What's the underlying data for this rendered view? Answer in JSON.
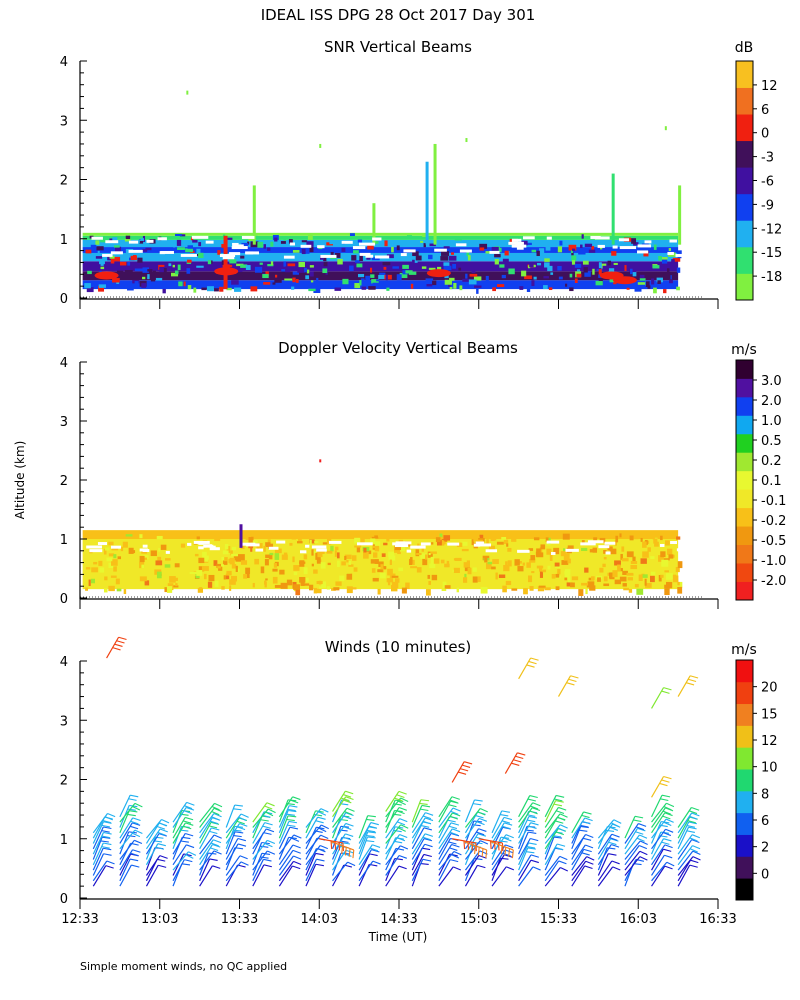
{
  "figure": {
    "title": "IDEAL ISS DPG  28 Oct 2017 Day 301",
    "ylabel": "Altitude (km)",
    "xlabel": "Time (UT)",
    "footnote": "Simple moment winds, no QC applied"
  },
  "colors": {
    "snr_scale": [
      "#80f040",
      "#30e070",
      "#20b0f0",
      "#1040f0",
      "#4010a0",
      "#40105a",
      "#f02010",
      "#f07020",
      "#f8c020"
    ],
    "vel_scale": [
      "#f02020",
      "#f04810",
      "#f07818",
      "#f09810",
      "#f8c018",
      "#f0e828",
      "#e8f830",
      "#a0e830",
      "#20d020",
      "#10a8f0",
      "#1040f0",
      "#5010a0",
      "#300030"
    ],
    "wind_scale": [
      "#000000",
      "#40105a",
      "#1a10c8",
      "#1060f0",
      "#20b0f0",
      "#20d870",
      "#80e830",
      "#f0c018",
      "#f08020",
      "#f04010",
      "#f01010"
    ]
  },
  "chart_data": [
    {
      "type": "heatmap",
      "title": "SNR Vertical Beams",
      "colorbar_unit": "dB",
      "colorbar_ticks": [
        "12",
        "6",
        "0",
        "-3",
        "-6",
        "-9",
        "-12",
        "-15",
        "-18"
      ],
      "y_ticks": [
        "0",
        "1",
        "2",
        "3",
        "4"
      ],
      "x_ticks": [
        "12:33",
        "13:03",
        "13:33",
        "14:03",
        "14:33",
        "15:03",
        "15:33",
        "16:03",
        "16:33"
      ],
      "ylim": [
        0,
        4
      ],
      "x_range_hours": [
        12.55,
        16.55
      ],
      "profiles": [
        {
          "z": [
            0.15,
            1.1
          ],
          "values_db": [
            -6,
            -3,
            3,
            -6,
            -9,
            -12,
            -15,
            -18
          ]
        }
      ],
      "features": [
        {
          "type": "column",
          "time": "13:28",
          "z": [
            0.15,
            1.05
          ],
          "value_db": 3
        },
        {
          "type": "column",
          "time": "14:43",
          "z": [
            0.9,
            2.3
          ],
          "value_db": -9
        },
        {
          "type": "column",
          "time": "15:53",
          "z": [
            0.9,
            2.1
          ],
          "value_db": -15
        }
      ]
    },
    {
      "type": "heatmap",
      "title": "Doppler Velocity Vertical Beams",
      "colorbar_unit": "m/s",
      "colorbar_ticks": [
        "3.0",
        "2.0",
        "1.0",
        "0.5",
        "0.2",
        "0.1",
        "-0.1",
        "-0.2",
        "-0.5",
        "-1.0",
        "-2.0"
      ],
      "y_ticks": [
        "0",
        "1",
        "2",
        "3",
        "4"
      ],
      "ylim": [
        0,
        4
      ],
      "x_range_hours": [
        12.55,
        16.55
      ],
      "profiles": [
        {
          "z": [
            0.15,
            1.15
          ],
          "values_ms": [
            -0.2,
            -0.1,
            -0.1,
            0.1,
            -0.2
          ]
        }
      ]
    },
    {
      "type": "barbs",
      "title": "Winds (10 minutes)",
      "colorbar_unit": "m/s",
      "colorbar_ticks": [
        "20",
        "15",
        "12",
        "10",
        "8",
        "6",
        "2",
        "0"
      ],
      "y_ticks": [
        "0",
        "1",
        "2",
        "3",
        "4"
      ],
      "x_ticks": [
        "12:33",
        "13:03",
        "13:33",
        "14:03",
        "14:33",
        "15:03",
        "15:33",
        "16:03",
        "16:33"
      ],
      "ylim": [
        0,
        4
      ],
      "x_range_hours": [
        12.55,
        16.55
      ],
      "profile_times": [
        "12:38",
        "12:48",
        "12:58",
        "13:08",
        "13:18",
        "13:28",
        "13:38",
        "13:48",
        "13:58",
        "14:08",
        "14:18",
        "14:28",
        "14:38",
        "14:48",
        "14:58",
        "15:08",
        "15:18",
        "15:28",
        "15:38",
        "15:48",
        "15:58",
        "16:08",
        "16:18"
      ],
      "isolated_barbs": [
        {
          "time": "12:43",
          "z": 4.05,
          "speed_ms": 20
        },
        {
          "time": "15:18",
          "z": 3.7,
          "speed_ms": 15
        },
        {
          "time": "15:33",
          "z": 3.4,
          "speed_ms": 15
        },
        {
          "time": "16:08",
          "z": 3.2,
          "speed_ms": 12
        },
        {
          "time": "16:18",
          "z": 3.4,
          "speed_ms": 15
        },
        {
          "time": "14:53",
          "z": 1.95,
          "speed_ms": 20
        },
        {
          "time": "15:13",
          "z": 2.1,
          "speed_ms": 20
        },
        {
          "time": "16:08",
          "z": 1.7,
          "speed_ms": 15
        }
      ]
    }
  ]
}
